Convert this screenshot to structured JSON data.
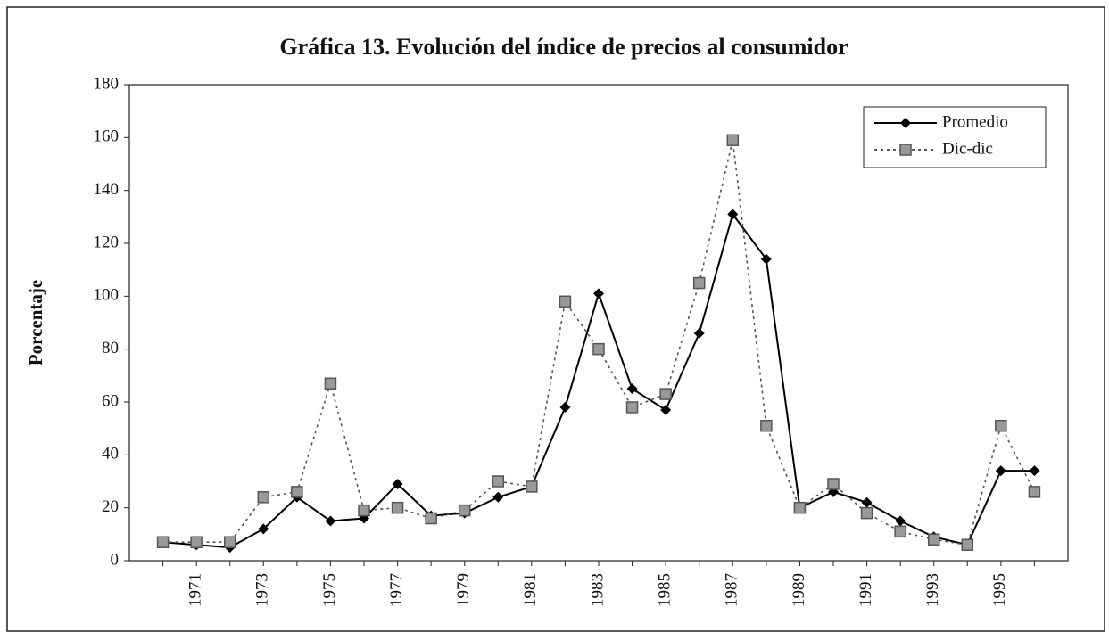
{
  "chart_data": {
    "type": "line",
    "title": "Gráfica 13. Evolución del índice de precios al consumidor",
    "y_label": "Porcentaje",
    "categories": [
      null,
      "1971",
      null,
      "1973",
      null,
      "1975",
      null,
      "1977",
      null,
      "1979",
      null,
      "1981",
      null,
      "1983",
      null,
      "1985",
      null,
      "1987",
      null,
      "1989",
      null,
      "1991",
      null,
      "1993",
      null,
      "1995",
      null
    ],
    "series": [
      {
        "name": "Promedio",
        "color": "#000000",
        "line": "solid",
        "marker": "diamond",
        "values": [
          7,
          6,
          5,
          12,
          24,
          15,
          16,
          29,
          17,
          18,
          24,
          28,
          58,
          101,
          65,
          57,
          86,
          131,
          114,
          20,
          26,
          22,
          15,
          9,
          6,
          34,
          34
        ]
      },
      {
        "name": "Dic-dic",
        "color": "#555555",
        "line": "dotted",
        "marker": "square",
        "values": [
          7,
          7,
          7,
          24,
          26,
          67,
          19,
          20,
          16,
          19,
          30,
          28,
          98,
          80,
          58,
          63,
          105,
          159,
          51,
          20,
          29,
          18,
          11,
          8,
          6,
          51,
          26
        ]
      }
    ],
    "ylim": [
      0,
      180
    ],
    "yticks": [
      0,
      20,
      40,
      60,
      80,
      100,
      120,
      140,
      160,
      180
    ],
    "grid": false,
    "legend": "top-right"
  }
}
